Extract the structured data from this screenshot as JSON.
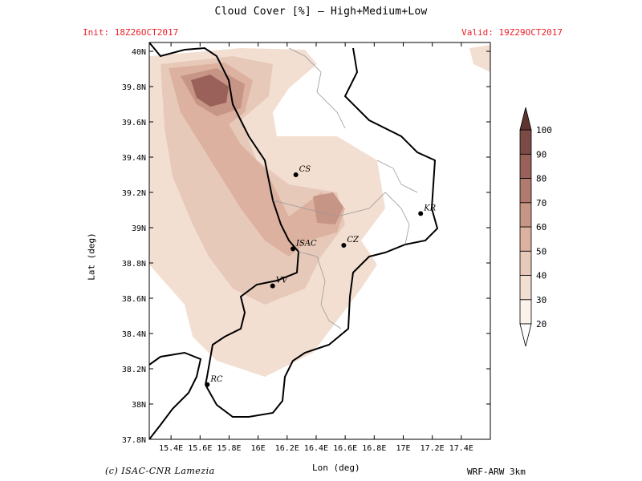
{
  "header": {
    "title": "Cloud Cover [%] — High+Medium+Low",
    "init": "Init: 18Z26OCT2017",
    "valid": "Valid: 19Z29OCT2017"
  },
  "axes": {
    "xlabel": "Lon (deg)",
    "ylabel": "Lat (deg)",
    "lon_ticks": [
      "15.4E",
      "15.6E",
      "15.8E",
      "16E",
      "16.2E",
      "16.4E",
      "16.6E",
      "16.8E",
      "17E",
      "17.2E",
      "17.4E"
    ],
    "lat_ticks": [
      "40N",
      "39.8N",
      "39.6N",
      "39.4N",
      "39.2N",
      "39N",
      "38.8N",
      "38.6N",
      "38.4N",
      "38.2N",
      "38N",
      "37.8N"
    ],
    "lon_range": [
      15.25,
      17.6
    ],
    "lat_range": [
      37.8,
      40.05
    ]
  },
  "colorbar": {
    "levels": [
      "20",
      "30",
      "40",
      "50",
      "60",
      "70",
      "80",
      "90",
      "100"
    ],
    "colors": [
      "#fbf2ea",
      "#f3dfd2",
      "#e7c9b9",
      "#dcb1a0",
      "#c79585",
      "#b07a6e",
      "#99615a",
      "#7d4b45",
      "#5e3430"
    ]
  },
  "cities": [
    {
      "name": "CS",
      "lon": 16.26,
      "lat": 39.3,
      "color": "#000000"
    },
    {
      "name": "KR",
      "lon": 17.12,
      "lat": 39.08,
      "color": "#000000"
    },
    {
      "name": "ISAC",
      "lon": 16.24,
      "lat": 38.88,
      "color": "#e8202a"
    },
    {
      "name": "CZ",
      "lon": 16.59,
      "lat": 38.9,
      "color": "#000000"
    },
    {
      "name": "VV",
      "lon": 16.1,
      "lat": 38.67,
      "color": "#000000"
    },
    {
      "name": "RC",
      "lon": 15.65,
      "lat": 38.11,
      "color": "#000000"
    }
  ],
  "footer": {
    "credit": "(c) ISAC-CNR Lamezia",
    "model": "WRF-ARW 3km"
  }
}
